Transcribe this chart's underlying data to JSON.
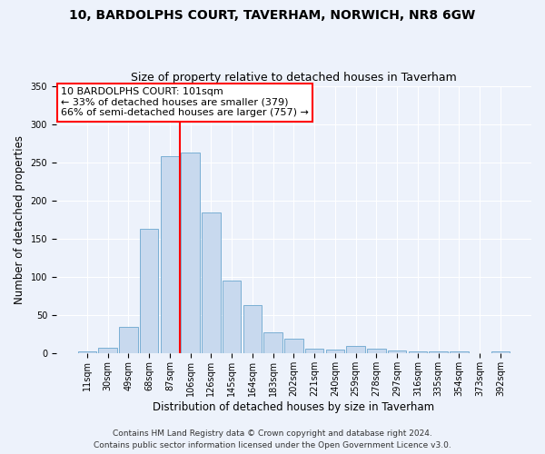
{
  "title": "10, BARDOLPHS COURT, TAVERHAM, NORWICH, NR8 6GW",
  "subtitle": "Size of property relative to detached houses in Taverham",
  "xlabel": "Distribution of detached houses by size in Taverham",
  "ylabel": "Number of detached properties",
  "bar_color": "#c8d9ee",
  "bar_edge_color": "#7aafd4",
  "categories": [
    "11sqm",
    "30sqm",
    "49sqm",
    "68sqm",
    "87sqm",
    "106sqm",
    "126sqm",
    "145sqm",
    "164sqm",
    "183sqm",
    "202sqm",
    "221sqm",
    "240sqm",
    "259sqm",
    "278sqm",
    "297sqm",
    "316sqm",
    "335sqm",
    "354sqm",
    "373sqm",
    "392sqm"
  ],
  "values": [
    3,
    8,
    35,
    163,
    258,
    263,
    185,
    96,
    63,
    28,
    20,
    6,
    5,
    10,
    6,
    4,
    3,
    3,
    3,
    1,
    3
  ],
  "vline_position": 4.5,
  "vline_color": "red",
  "annotation_line1": "10 BARDOLPHS COURT: 101sqm",
  "annotation_line2": "← 33% of detached houses are smaller (379)",
  "annotation_line3": "66% of semi-detached houses are larger (757) →",
  "footer1": "Contains HM Land Registry data © Crown copyright and database right 2024.",
  "footer2": "Contains public sector information licensed under the Open Government Licence v3.0.",
  "ylim": [
    0,
    350
  ],
  "background_color": "#edf2fb",
  "grid_color": "#ffffff",
  "title_fontsize": 10,
  "subtitle_fontsize": 9,
  "axis_label_fontsize": 8.5,
  "tick_fontsize": 7,
  "annotation_fontsize": 8,
  "footer_fontsize": 6.5
}
